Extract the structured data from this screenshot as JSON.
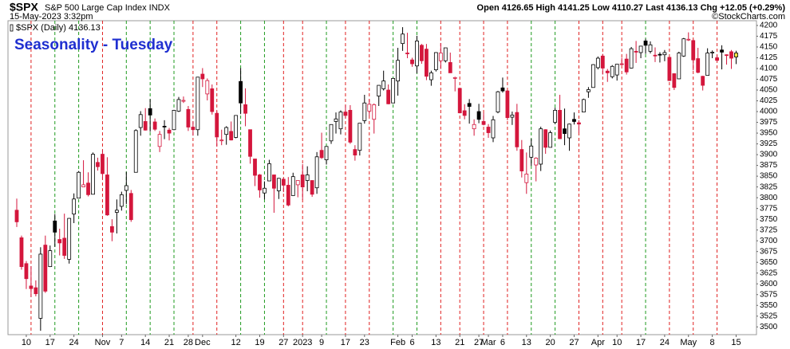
{
  "chart_data": {
    "type": "candlestick",
    "header": {
      "symbol": "$SPX",
      "name": "S&P 500 Large Cap Index INDX",
      "datetime": "15-May-2023 3:32pm",
      "ohlc": "Open 4126.65  High 4141.25  Low 4110.27  Last 4136.13  Chg +12.05 (+0.29%)",
      "watermark": "©StockCharts.com"
    },
    "legend_label": "$SPX (Daily) 4136.13",
    "subtitle": "Seasonality - Tuesday",
    "categories": [
      null,
      null,
      "10",
      null,
      null,
      null,
      null,
      "17",
      null,
      null,
      null,
      null,
      "24",
      null,
      null,
      null,
      null,
      null,
      "Nov",
      null,
      null,
      null,
      "7",
      null,
      null,
      null,
      null,
      "14",
      null,
      null,
      null,
      null,
      "21",
      null,
      null,
      null,
      "28",
      null,
      null,
      "Dec",
      null,
      null,
      null,
      null,
      null,
      null,
      "12",
      null,
      null,
      null,
      null,
      "19",
      null,
      null,
      null,
      null,
      "27",
      null,
      null,
      null,
      "2023",
      null,
      null,
      null,
      "9",
      null,
      null,
      null,
      null,
      "17",
      null,
      null,
      null,
      "23",
      null,
      null,
      null,
      null,
      null,
      null,
      "Feb",
      null,
      null,
      "6",
      null,
      null,
      null,
      null,
      "13",
      null,
      null,
      null,
      null,
      "21",
      null,
      null,
      null,
      "27",
      null,
      "Mar",
      null,
      null,
      "6",
      null,
      null,
      null,
      null,
      "13",
      null,
      null,
      null,
      null,
      "20",
      null,
      null,
      null,
      null,
      "27",
      null,
      null,
      null,
      null,
      "Apr",
      null,
      null,
      null,
      "10",
      null,
      null,
      null,
      null,
      "17",
      null,
      null,
      null,
      null,
      "24",
      null,
      null,
      null,
      null,
      "May",
      null,
      null,
      null,
      null,
      "8",
      null,
      null,
      null,
      null,
      "15"
    ],
    "series": [
      {
        "name": "$SPX",
        "open": [
          3771,
          3707,
          3647,
          3595,
          3591,
          3520,
          3690,
          3640,
          3746,
          3703,
          3706,
          3657,
          3762,
          3799,
          3825,
          3834,
          3808,
          3882,
          3901,
          3853,
          3733,
          3766,
          3780,
          3817,
          3810,
          3859,
          3963,
          3977,
          4007,
          3976,
          3919,
          3966,
          3957,
          3958,
          4001,
          4024,
          4005,
          3964,
          3958,
          4087,
          4041,
          4053,
          3996,
          3933,
          3947,
          3954,
          3940,
          4070,
          4016,
          3958,
          3890,
          3853,
          3811,
          3839,
          3853,
          3816,
          3843,
          3829,
          3805,
          3830,
          3853,
          3840,
          3840,
          3823,
          3910,
          3888,
          3932,
          3977,
          3960,
          3999,
          4003,
          3912,
          3910,
          3979,
          4001,
          3982,
          4036,
          4053,
          4050,
          4020,
          4071,
          4158,
          4136,
          4120,
          4106,
          4154,
          4145,
          4074,
          4097,
          4118,
          4118,
          4114,
          4077,
          4054,
          4002,
          4019,
          3960,
          4000,
          3977,
          3964,
          3939,
          3999,
          4055,
          4048,
          3987,
          3998,
          3912,
          3835,
          3894,
          3876,
          3878,
          3958,
          3917,
          3975,
          4003,
          3960,
          3939,
          3982,
          3974,
          3999,
          4046,
          4056,
          4102,
          4129,
          4094,
          4081,
          4085,
          4111,
          4122,
          4101,
          4140,
          4137,
          4164,
          4140,
          4131,
          4133,
          4132,
          4126,
          4088,
          4076,
          4129,
          4167,
          4165,
          4123,
          4082,
          4084,
          4136,
          4125,
          4143,
          4132,
          4139,
          4126.65
        ],
        "high": [
          3798,
          3712,
          3653,
          3641,
          3608,
          3685,
          3712,
          3689,
          3762,
          3728,
          3763,
          3753,
          3810,
          3862,
          3887,
          3859,
          3905,
          3893,
          3911,
          3894,
          3750,
          3796,
          3814,
          3860,
          3818,
          3959,
          4001,
          4008,
          4029,
          3984,
          3955,
          3980,
          3962,
          4004,
          4034,
          4035,
          4013,
          3977,
          4080,
          4101,
          4077,
          4063,
          4001,
          3958,
          3966,
          3977,
          3991,
          4101,
          4054,
          3958,
          3890,
          3855,
          3838,
          3888,
          3853,
          3846,
          3846,
          3848,
          3858,
          3840,
          3878,
          3873,
          3840,
          3906,
          3951,
          3919,
          3970,
          3998,
          4003,
          4015,
          4015,
          3922,
          3973,
          4039,
          4028,
          4019,
          4061,
          4095,
          4063,
          4078,
          4148,
          4196,
          4183,
          4125,
          4176,
          4157,
          4157,
          4095,
          4138,
          4159,
          4148,
          4137,
          4081,
          4054,
          4017,
          4029,
          3982,
          4018,
          3997,
          3971,
          3990,
          4048,
          4079,
          4050,
          4000,
          4018,
          3934,
          3905,
          3937,
          3894,
          3965,
          3959,
          3956,
          4009,
          4039,
          4007,
          3972,
          3998,
          3980,
          4030,
          4057,
          4110,
          4128,
          4134,
          4099,
          4108,
          4110,
          4125,
          4134,
          4150,
          4164,
          4152,
          4169,
          4163,
          4149,
          4138,
          4143,
          4126,
          4089,
          4139,
          4171,
          4184,
          4167,
          4148,
          4083,
          4147,
          4142,
          4131,
          4154,
          4133,
          4143,
          4141.25
        ],
        "low": [
          3732,
          3633,
          3588,
          3569,
          3571,
          3491,
          3579,
          3639,
          3686,
          3666,
          3658,
          3647,
          3741,
          3799,
          3825,
          3803,
          3808,
          3863,
          3843,
          3758,
          3699,
          3717,
          3770,
          3785,
          3744,
          3859,
          3944,
          3956,
          3953,
          3955,
          3906,
          3936,
          3933,
          3957,
          3999,
          4020,
          3955,
          3944,
          3944,
          4057,
          4026,
          3993,
          3919,
          3922,
          3923,
          3933,
          3938,
          3994,
          3966,
          3879,
          3827,
          3800,
          3796,
          3839,
          3765,
          3797,
          3813,
          3780,
          3805,
          3801,
          3795,
          3815,
          3802,
          3809,
          3890,
          3877,
          3925,
          3949,
          3947,
          3984,
          3925,
          3886,
          3898,
          3972,
          3990,
          3949,
          4013,
          4049,
          4017,
          4020,
          4037,
          4141,
          4124,
          4104,
          4089,
          4111,
          4073,
          4060,
          4093,
          4099,
          4114,
          4090,
          4047,
          3996,
          3982,
          3972,
          3944,
          3973,
          3968,
          3939,
          3929,
          3996,
          4044,
          3980,
          3969,
          3909,
          3847,
          3809,
          3874,
          3838,
          3862,
          3902,
          3917,
          3971,
          3936,
          3922,
          3909,
          3970,
          3951,
          3999,
          4032,
          4056,
          4098,
          4086,
          4069,
          4077,
          4072,
          4108,
          4086,
          4100,
          4113,
          4124,
          4134,
          4135,
          4115,
          4114,
          4117,
          4071,
          4050,
          4076,
          4127,
          4164,
          4096,
          4089,
          4049,
          4084,
          4124,
          4116,
          4098,
          4109,
          4099,
          4110.27
        ],
        "close": [
          3744,
          3640,
          3612,
          3589,
          3577,
          3669,
          3583,
          3677,
          3720,
          3695,
          3666,
          3752,
          3797,
          3859,
          3830,
          3807,
          3901,
          3872,
          3856,
          3760,
          3720,
          3771,
          3807,
          3828,
          3749,
          3956,
          3993,
          3957,
          3992,
          3959,
          3947,
          3965,
          3950,
          4003,
          4028,
          4026,
          3964,
          3958,
          4080,
          4076,
          4072,
          4000,
          3941,
          3934,
          3963,
          3934,
          3991,
          4020,
          3996,
          3896,
          3852,
          3818,
          3822,
          3879,
          3822,
          3845,
          3829,
          3783,
          3849,
          3840,
          3825,
          3853,
          3808,
          3895,
          3893,
          3919,
          3970,
          3983,
          3999,
          3991,
          3929,
          3899,
          3973,
          4020,
          4017,
          4016,
          4061,
          4071,
          4018,
          4077,
          4119,
          4180,
          4136,
          4111,
          4164,
          4118,
          4082,
          4090,
          4137,
          4136,
          4148,
          4090,
          4079,
          3997,
          3991,
          4012,
          3970,
          3982,
          3970,
          3951,
          3981,
          4046,
          4048,
          3986,
          3992,
          3918,
          3862,
          3855,
          3920,
          3892,
          3960,
          3917,
          3951,
          4003,
          3937,
          3949,
          3971,
          3977,
          3971,
          4028,
          4051,
          4109,
          4124,
          4101,
          4090,
          4105,
          4110,
          4109,
          4092,
          4146,
          4138,
          4152,
          4154,
          4155,
          4130,
          4133,
          4137,
          4072,
          4056,
          4136,
          4169,
          4168,
          4120,
          4091,
          4061,
          4136,
          4138,
          4119,
          4138,
          4131,
          4124,
          4136.13
        ]
      }
    ],
    "colors": {
      "down": "#d4163c",
      "up": "#000000",
      "hollow": "#ffffff",
      "tuesday_up": "#1e9a1e",
      "tuesday_down": "#e02020",
      "last": "#f5e642"
    },
    "ylim": [
      3482,
      4211
    ],
    "yticks": [
      3500,
      3525,
      3550,
      3575,
      3600,
      3625,
      3650,
      3675,
      3700,
      3725,
      3750,
      3775,
      3800,
      3825,
      3850,
      3875,
      3900,
      3925,
      3950,
      3975,
      4000,
      4025,
      4050,
      4075,
      4100,
      4125,
      4150,
      4175,
      4200
    ],
    "grid": false
  }
}
